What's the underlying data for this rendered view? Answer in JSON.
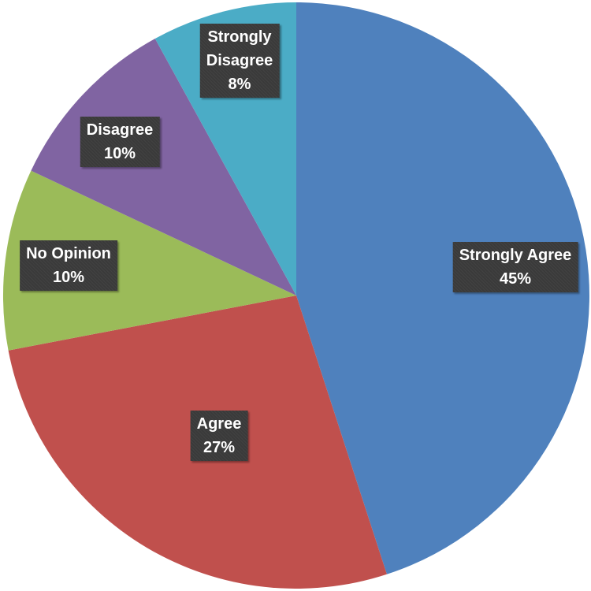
{
  "chart_data": {
    "type": "pie",
    "start_angle": "12 o'clock",
    "direction": "clockwise",
    "slices": [
      {
        "name_lines": [
          "Strongly Agree"
        ],
        "value": 45,
        "percent_label": "45%",
        "color": "#4f81bd"
      },
      {
        "name_lines": [
          "Agree"
        ],
        "value": 27,
        "percent_label": "27%",
        "color": "#c0504d"
      },
      {
        "name_lines": [
          "No Opinion"
        ],
        "value": 10,
        "percent_label": "10%",
        "color": "#9bbb59"
      },
      {
        "name_lines": [
          "Disagree"
        ],
        "value": 10,
        "percent_label": "10%",
        "color": "#8064a2"
      },
      {
        "name_lines": [
          "Strongly",
          "Disagree"
        ],
        "value": 8,
        "percent_label": "8%",
        "color": "#4bacc6"
      }
    ]
  }
}
